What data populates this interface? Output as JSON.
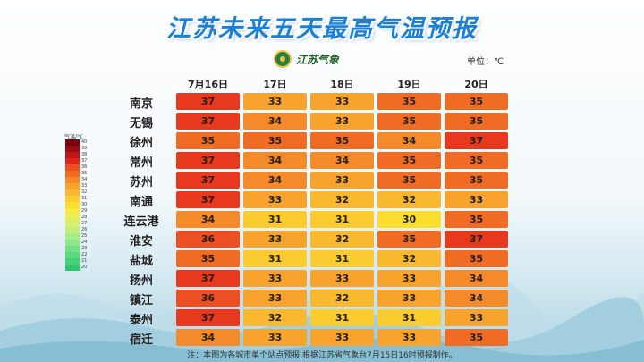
{
  "title": "江苏未来五天最高气温预报",
  "logo_text": "江苏气象",
  "unit_label": "单位：℃",
  "dates": [
    "7月16日",
    "17日",
    "18日",
    "19日",
    "20日"
  ],
  "cities": [
    {
      "name": "南京",
      "temps": [
        37,
        33,
        33,
        35,
        35
      ]
    },
    {
      "name": "无锡",
      "temps": [
        37,
        34,
        33,
        35,
        35
      ]
    },
    {
      "name": "徐州",
      "temps": [
        35,
        35,
        35,
        34,
        37
      ]
    },
    {
      "name": "常州",
      "temps": [
        37,
        34,
        34,
        35,
        35
      ]
    },
    {
      "name": "苏州",
      "temps": [
        37,
        34,
        33,
        35,
        35
      ]
    },
    {
      "name": "南通",
      "temps": [
        37,
        33,
        32,
        32,
        33
      ]
    },
    {
      "name": "连云港",
      "temps": [
        34,
        31,
        31,
        30,
        35
      ]
    },
    {
      "name": "淮安",
      "temps": [
        36,
        33,
        32,
        35,
        37
      ]
    },
    {
      "name": "盐城",
      "temps": [
        35,
        31,
        31,
        32,
        35
      ]
    },
    {
      "name": "扬州",
      "temps": [
        37,
        33,
        33,
        33,
        34
      ]
    },
    {
      "name": "镇江",
      "temps": [
        36,
        33,
        32,
        33,
        34
      ]
    },
    {
      "name": "泰州",
      "temps": [
        37,
        32,
        31,
        31,
        33
      ]
    },
    {
      "name": "宿迁",
      "temps": [
        34,
        33,
        33,
        33,
        35
      ]
    }
  ],
  "color_scale": {
    "37": "#e8391f",
    "36": "#ec4f22",
    "35": "#f06c25",
    "34": "#f48a2a",
    "33": "#f7a32d",
    "32": "#f9b92f",
    "31": "#fbcb30",
    "30": "#fcde2e"
  },
  "legend": {
    "title": "气温/℃",
    "steps": [
      {
        "label": "40",
        "color": "#7a0010"
      },
      {
        "label": "39",
        "color": "#9c0a12"
      },
      {
        "label": "38",
        "color": "#c01515"
      },
      {
        "label": "37",
        "color": "#e0231a"
      },
      {
        "label": "36",
        "color": "#ec4f22"
      },
      {
        "label": "35",
        "color": "#f06c25"
      },
      {
        "label": "34",
        "color": "#f48a2a"
      },
      {
        "label": "33",
        "color": "#f7a32d"
      },
      {
        "label": "32",
        "color": "#f9b92f"
      },
      {
        "label": "31",
        "color": "#fbcb30"
      },
      {
        "label": "30",
        "color": "#fcde2e"
      },
      {
        "label": "29",
        "color": "#f6ea45"
      },
      {
        "label": "28",
        "color": "#e8ef5c"
      },
      {
        "label": "27",
        "color": "#d6f16f"
      },
      {
        "label": "26",
        "color": "#c0ef7e"
      },
      {
        "label": "25",
        "color": "#a6ec88"
      },
      {
        "label": "24",
        "color": "#8ee78a"
      },
      {
        "label": "23",
        "color": "#74e187"
      },
      {
        "label": "22",
        "color": "#5cd97f"
      },
      {
        "label": "21",
        "color": "#46d077"
      },
      {
        "label": "20",
        "color": "#31c66e"
      }
    ]
  },
  "note": "注：本图为各城市单个站点预报,根据江苏省气象台7月15日16时预报制作。"
}
